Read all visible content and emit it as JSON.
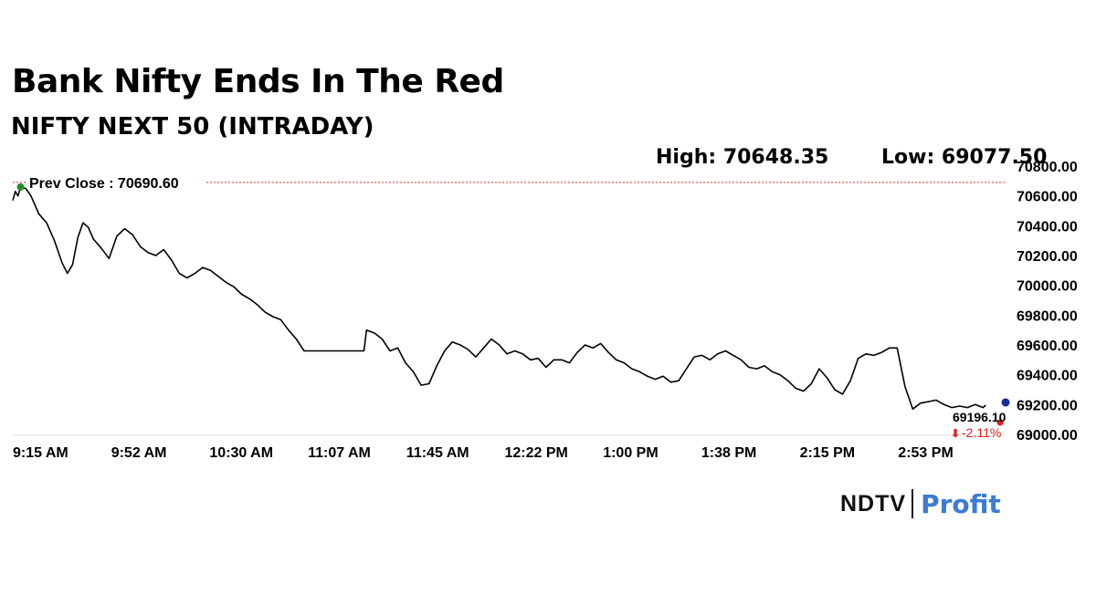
{
  "header": {
    "headline": "Bank Nifty Ends In The Red",
    "subtitle": "NIFTY NEXT 50 (INTRADAY)",
    "high_text": "High: 70648.35",
    "low_text": "Low: 69077.50"
  },
  "brand": {
    "name_left": "NDTV",
    "name_right": "Profit",
    "accent_color": "#3a7bd5"
  },
  "chart_data": {
    "type": "line",
    "title": "",
    "xlabel": "",
    "ylabel": "",
    "ylim": [
      69000,
      70800
    ],
    "y_ticks": [
      69000,
      69200,
      69400,
      69600,
      69800,
      70000,
      70200,
      70400,
      70600,
      70800
    ],
    "y_tick_labels": [
      "69000.00",
      "69200.00",
      "69400.00",
      "69600.00",
      "69800.00",
      "70000.00",
      "70200.00",
      "70400.00",
      "70600.00",
      "70800.00"
    ],
    "x_ticks": [
      "9:15 AM",
      "9:52 AM",
      "10:30 AM",
      "11:07 AM",
      "11:45 AM",
      "12:22 PM",
      "1:00 PM",
      "1:38 PM",
      "2:15 PM",
      "2:53 PM"
    ],
    "grid": false,
    "reference_line": {
      "label": "Prev Close : 70690.60",
      "value": 70690.6,
      "color": "#e03030"
    },
    "last_price": {
      "value": 69196.1,
      "label": "69196.10",
      "change_label": "-2.11%",
      "change_color": "#e02020"
    },
    "line_color": "#000000",
    "series": [
      {
        "x": [
          "9:15",
          "9:16",
          "9:17",
          "9:18",
          "9:20",
          "9:22",
          "9:25",
          "9:28",
          "9:31",
          "9:34",
          "9:36",
          "9:38",
          "9:40",
          "9:42",
          "9:44",
          "9:46",
          "9:49",
          "9:52",
          "9:55",
          "9:58",
          "10:01",
          "10:04",
          "10:07",
          "10:10",
          "10:13",
          "10:16",
          "10:19",
          "10:22",
          "10:25",
          "10:28",
          "10:31",
          "10:34",
          "10:37",
          "10:40",
          "10:43",
          "10:46",
          "10:49",
          "10:52",
          "10:55",
          "10:58",
          "11:01",
          "11:04",
          "11:07",
          "11:10",
          "11:13",
          "11:16",
          "11:19",
          "11:22",
          "11:25",
          "11:28",
          "11:30",
          "11:31",
          "11:34",
          "11:37",
          "11:40",
          "11:43",
          "11:46",
          "11:49",
          "11:52",
          "11:55",
          "11:58",
          "12:01",
          "12:04",
          "12:07",
          "12:10",
          "12:13",
          "12:16",
          "12:19",
          "12:22",
          "12:25",
          "12:28",
          "12:31",
          "12:34",
          "12:37",
          "12:40",
          "12:43",
          "12:46",
          "12:49",
          "12:52",
          "12:55",
          "12:58",
          "13:01",
          "13:04",
          "13:07",
          "13:10",
          "13:13",
          "13:16",
          "13:19",
          "13:22",
          "13:25",
          "13:28",
          "13:31",
          "13:34",
          "13:37",
          "13:40",
          "13:43",
          "13:46",
          "13:49",
          "13:52",
          "13:55",
          "13:58",
          "14:01",
          "14:04",
          "14:07",
          "14:10",
          "14:13",
          "14:16",
          "14:19",
          "14:22",
          "14:25",
          "14:28",
          "14:31",
          "14:34",
          "14:37",
          "14:40",
          "14:43",
          "14:46",
          "14:49",
          "14:52",
          "14:55",
          "14:58",
          "15:01",
          "15:04",
          "15:07",
          "15:10",
          "15:13",
          "15:16",
          "15:19",
          "15:22",
          "15:25",
          "15:28",
          "15:29"
        ],
        "values": [
          70570,
          70630,
          70600,
          70660,
          70650,
          70600,
          70480,
          70420,
          70300,
          70150,
          70080,
          70140,
          70320,
          70420,
          70390,
          70310,
          70250,
          70180,
          70330,
          70380,
          70340,
          70260,
          70220,
          70200,
          70240,
          70170,
          70080,
          70050,
          70080,
          70120,
          70100,
          70060,
          70020,
          69990,
          69940,
          69910,
          69870,
          69820,
          69790,
          69770,
          69700,
          69640,
          69560,
          69560,
          69560,
          69560,
          69560,
          69560,
          69560,
          69560,
          69560,
          69700,
          69680,
          69640,
          69560,
          69580,
          69480,
          69420,
          69330,
          69340,
          69460,
          69560,
          69620,
          69600,
          69570,
          69520,
          69580,
          69640,
          69600,
          69540,
          69560,
          69540,
          69500,
          69510,
          69450,
          69500,
          69500,
          69480,
          69550,
          69600,
          69580,
          69610,
          69550,
          69500,
          69480,
          69440,
          69420,
          69390,
          69370,
          69390,
          69350,
          69360,
          69440,
          69520,
          69530,
          69500,
          69540,
          69560,
          69530,
          69500,
          69450,
          69440,
          69460,
          69420,
          69400,
          69360,
          69310,
          69290,
          69340,
          69440,
          69380,
          69300,
          69270,
          69360,
          69510,
          69540,
          69530,
          69550,
          69580,
          69580,
          69320,
          69170,
          69210,
          69220,
          69230,
          69200,
          69180,
          69190,
          69180,
          69200,
          69180,
          69196.1
        ]
      }
    ]
  }
}
